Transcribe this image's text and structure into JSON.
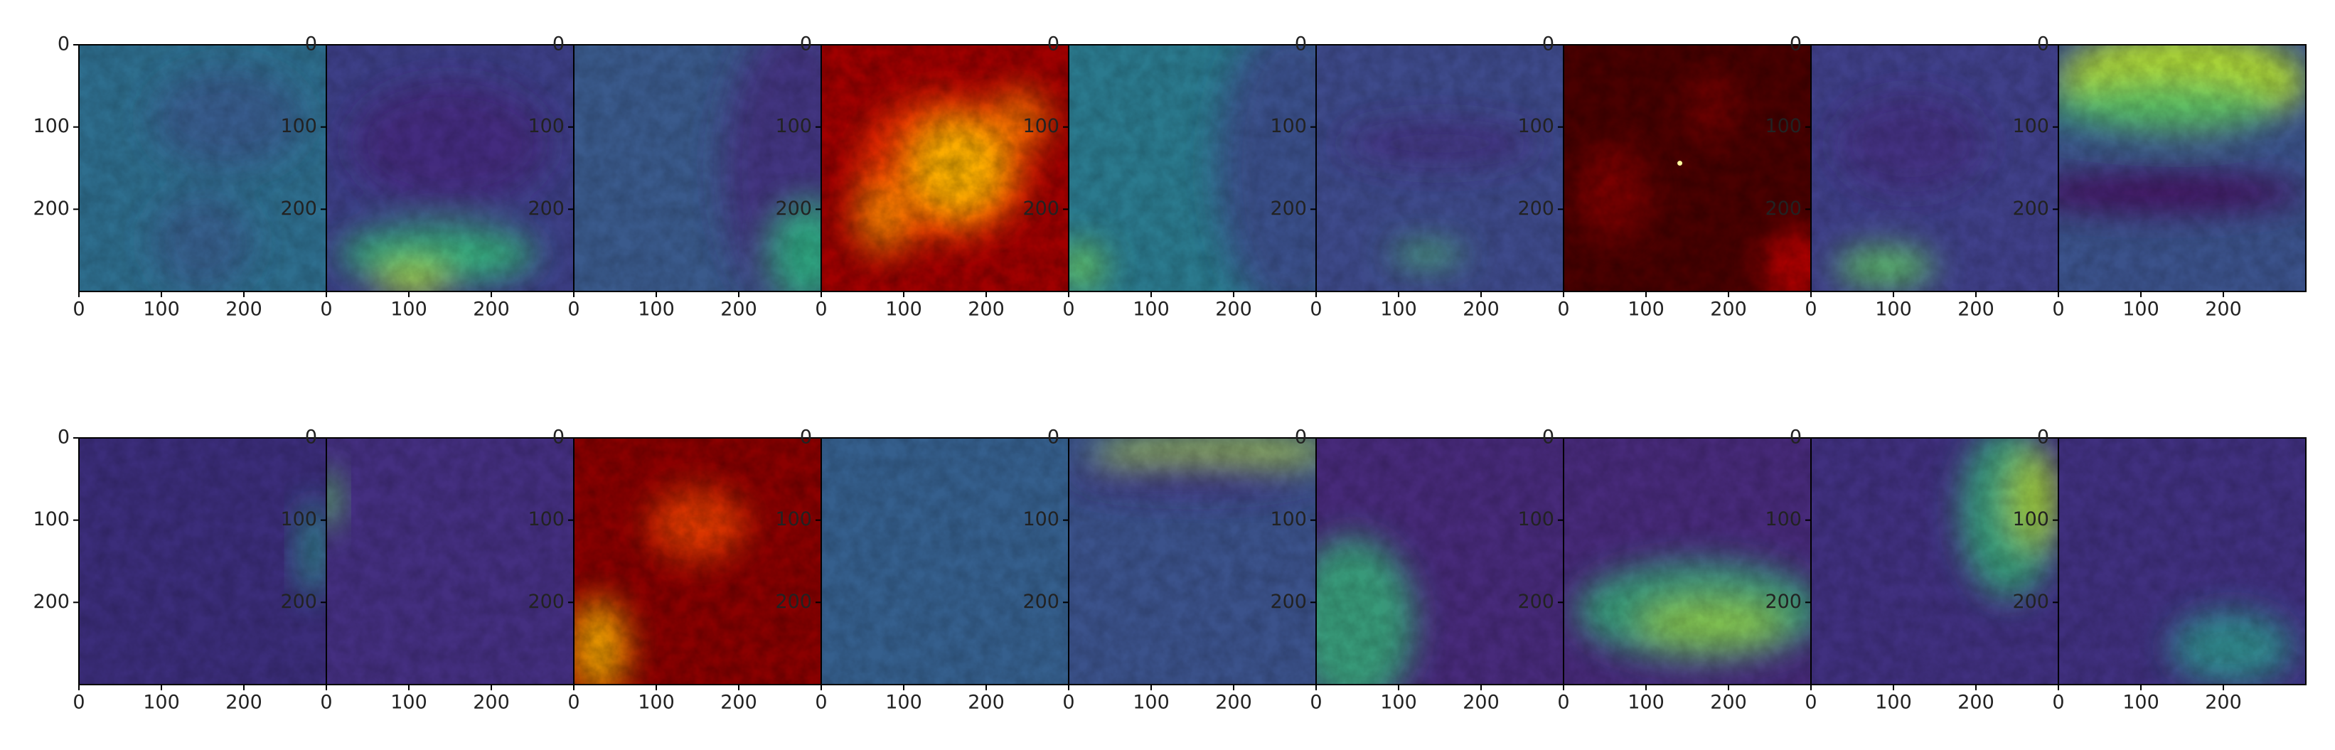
{
  "chart_data": [
    {
      "type": "image",
      "colormap": "viridis",
      "xlim": [
        0,
        300
      ],
      "ylim": [
        300,
        0
      ],
      "xticks": [
        0,
        100,
        200
      ],
      "yticks": [
        0,
        100,
        200
      ]
    },
    {
      "type": "image",
      "colormap": "viridis",
      "xlim": [
        0,
        300
      ],
      "ylim": [
        300,
        0
      ],
      "xticks": [
        0,
        100,
        200
      ],
      "yticks": [
        0,
        100,
        200
      ]
    },
    {
      "type": "image",
      "colormap": "viridis",
      "xlim": [
        0,
        300
      ],
      "ylim": [
        300,
        0
      ],
      "xticks": [
        0,
        100,
        200
      ],
      "yticks": [
        0,
        100,
        200
      ]
    },
    {
      "type": "image",
      "colormap": "hot",
      "xlim": [
        0,
        300
      ],
      "ylim": [
        300,
        0
      ],
      "xticks": [
        0,
        100,
        200
      ],
      "yticks": [
        0,
        100,
        200
      ]
    },
    {
      "type": "image",
      "colormap": "viridis",
      "xlim": [
        0,
        300
      ],
      "ylim": [
        300,
        0
      ],
      "xticks": [
        0,
        100,
        200
      ],
      "yticks": [
        0,
        100,
        200
      ]
    },
    {
      "type": "image",
      "colormap": "viridis",
      "xlim": [
        0,
        300
      ],
      "ylim": [
        300,
        0
      ],
      "xticks": [
        0,
        100,
        200
      ],
      "yticks": [
        0,
        100,
        200
      ]
    },
    {
      "type": "image",
      "colormap": "hot",
      "xlim": [
        0,
        300
      ],
      "ylim": [
        300,
        0
      ],
      "xticks": [
        0,
        100,
        200
      ],
      "yticks": [
        0,
        100,
        200
      ]
    },
    {
      "type": "image",
      "colormap": "viridis",
      "xlim": [
        0,
        300
      ],
      "ylim": [
        300,
        0
      ],
      "xticks": [
        0,
        100,
        200
      ],
      "yticks": [
        0,
        100,
        200
      ]
    },
    {
      "type": "image",
      "colormap": "viridis",
      "xlim": [
        0,
        300
      ],
      "ylim": [
        300,
        0
      ],
      "xticks": [
        0,
        100,
        200
      ],
      "yticks": [
        0,
        100,
        200
      ]
    },
    {
      "type": "image",
      "colormap": "viridis",
      "xlim": [
        0,
        300
      ],
      "ylim": [
        300,
        0
      ],
      "xticks": [
        0,
        100,
        200
      ],
      "yticks": [
        0,
        100,
        200
      ]
    },
    {
      "type": "image",
      "colormap": "viridis",
      "xlim": [
        0,
        300
      ],
      "ylim": [
        300,
        0
      ],
      "xticks": [
        0,
        100,
        200
      ],
      "yticks": [
        0,
        100,
        200
      ]
    },
    {
      "type": "image",
      "colormap": "hot",
      "xlim": [
        0,
        300
      ],
      "ylim": [
        300,
        0
      ],
      "xticks": [
        0,
        100,
        200
      ],
      "yticks": [
        0,
        100,
        200
      ]
    },
    {
      "type": "image",
      "colormap": "viridis",
      "xlim": [
        0,
        300
      ],
      "ylim": [
        300,
        0
      ],
      "xticks": [
        0,
        100,
        200
      ],
      "yticks": [
        0,
        100,
        200
      ]
    },
    {
      "type": "image",
      "colormap": "viridis",
      "xlim": [
        0,
        300
      ],
      "ylim": [
        300,
        0
      ],
      "xticks": [
        0,
        100,
        200
      ],
      "yticks": [
        0,
        100,
        200
      ]
    },
    {
      "type": "image",
      "colormap": "viridis",
      "xlim": [
        0,
        300
      ],
      "ylim": [
        300,
        0
      ],
      "xticks": [
        0,
        100,
        200
      ],
      "yticks": [
        0,
        100,
        200
      ]
    },
    {
      "type": "image",
      "colormap": "viridis",
      "xlim": [
        0,
        300
      ],
      "ylim": [
        300,
        0
      ],
      "xticks": [
        0,
        100,
        200
      ],
      "yticks": [
        0,
        100,
        200
      ]
    },
    {
      "type": "image",
      "colormap": "viridis",
      "xlim": [
        0,
        300
      ],
      "ylim": [
        300,
        0
      ],
      "xticks": [
        0,
        100,
        200
      ],
      "yticks": [
        0,
        100,
        200
      ]
    },
    {
      "type": "image",
      "colormap": "viridis",
      "xlim": [
        0,
        300
      ],
      "ylim": [
        300,
        0
      ],
      "xticks": [
        0,
        100,
        200
      ],
      "yticks": [
        0,
        100,
        200
      ]
    }
  ]
}
